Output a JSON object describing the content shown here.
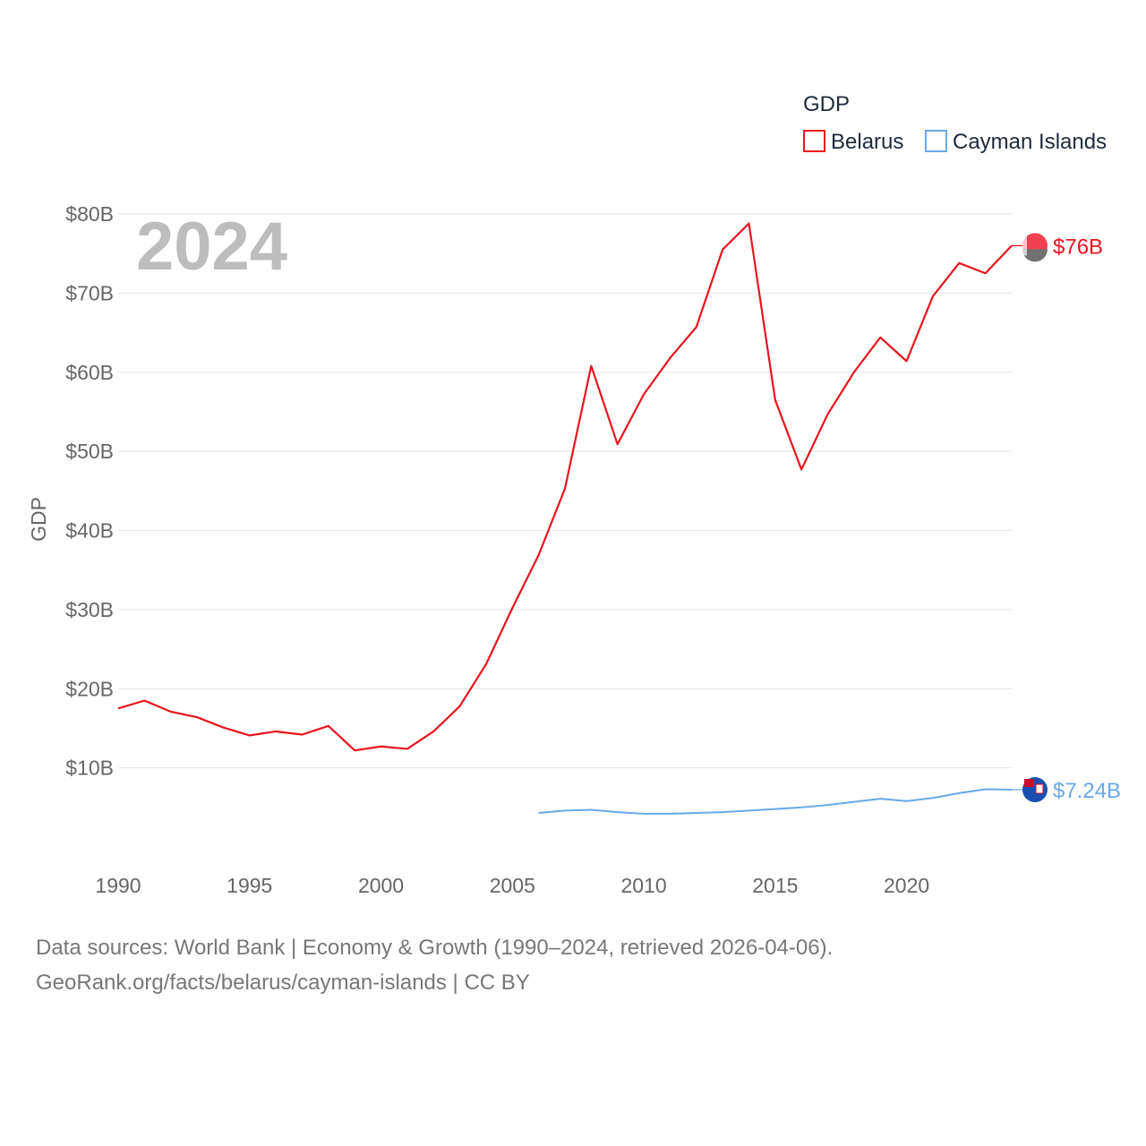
{
  "chart_data": {
    "type": "line",
    "year_label": "2024",
    "ylabel": "GDP",
    "legend_title": "GDP",
    "x_ticks": [
      1990,
      1995,
      2000,
      2005,
      2010,
      2015,
      2020
    ],
    "x_tick_labels": [
      "1990",
      "1995",
      "2000",
      "2005",
      "2010",
      "2015",
      "2020"
    ],
    "xlim": [
      1990,
      2024
    ],
    "ylim": [
      0,
      80
    ],
    "y_ticks": [
      10,
      20,
      30,
      40,
      50,
      60,
      70,
      80
    ],
    "y_tick_labels": [
      "$10B",
      "$20B",
      "$30B",
      "$40B",
      "$50B",
      "$60B",
      "$70B",
      "$80B"
    ],
    "series": [
      {
        "name": "Belarus",
        "color": "#e8141e",
        "end_label": "$76B",
        "x": [
          1990,
          1991,
          1992,
          1993,
          1994,
          1995,
          1996,
          1997,
          1998,
          1999,
          2000,
          2001,
          2002,
          2003,
          2004,
          2005,
          2006,
          2007,
          2008,
          2009,
          2010,
          2011,
          2012,
          2013,
          2014,
          2015,
          2016,
          2017,
          2018,
          2019,
          2020,
          2021,
          2022,
          2023,
          2024
        ],
        "values": [
          17.5,
          18.5,
          17.1,
          16.4,
          15.1,
          14.1,
          14.6,
          14.2,
          15.3,
          12.2,
          12.7,
          12.4,
          14.6,
          17.8,
          23.1,
          30.2,
          36.9,
          45.3,
          60.8,
          50.9,
          57.2,
          61.8,
          65.7,
          75.5,
          78.8,
          56.5,
          47.7,
          54.7,
          60.0,
          64.4,
          61.4,
          69.6,
          73.8,
          72.5,
          76.0
        ]
      },
      {
        "name": "Cayman Islands",
        "color": "#6aa8e6",
        "end_label": "$7.24B",
        "x": [
          2006,
          2007,
          2008,
          2009,
          2010,
          2011,
          2012,
          2013,
          2014,
          2015,
          2016,
          2017,
          2018,
          2019,
          2020,
          2021,
          2022,
          2023,
          2024
        ],
        "values": [
          4.3,
          4.6,
          4.7,
          4.4,
          4.2,
          4.2,
          4.3,
          4.4,
          4.6,
          4.8,
          5.0,
          5.3,
          5.7,
          6.1,
          5.8,
          6.2,
          6.8,
          7.3,
          7.24
        ]
      }
    ]
  },
  "footer": {
    "line1": "Data sources: World Bank | Economy & Growth (1990–2024, retrieved 2026-04-06).",
    "line2": "GeoRank.org/facts/belarus/cayman-islands | CC BY"
  }
}
